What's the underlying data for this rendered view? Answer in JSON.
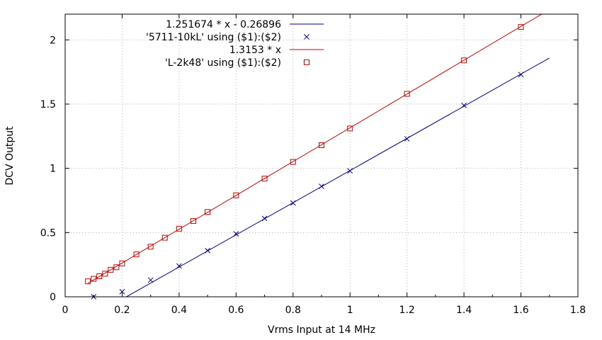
{
  "chart_data": {
    "type": "scatter",
    "title": "",
    "xlabel": "Vrms Input at 14 MHz",
    "ylabel": "DCV Output",
    "xlim": [
      0,
      1.8
    ],
    "ylim": [
      0,
      2.2
    ],
    "x_ticks": [
      "0",
      "0.2",
      "0.4",
      "0.6",
      "0.8",
      "1",
      "1.2",
      "1.4",
      "1.6",
      "1.8"
    ],
    "y_ticks": [
      "0",
      "0.5",
      "1",
      "1.5",
      "2"
    ],
    "grid": true,
    "legend_position": "top-left",
    "series": [
      {
        "name": "1.251674 * x - 0.26896",
        "kind": "line",
        "slope": 1.251674,
        "intercept": -0.26896,
        "x_range": [
          0.215,
          1.7
        ],
        "color": "#00008b"
      },
      {
        "name": "'5711-10kL' using ($1):($2)",
        "kind": "points",
        "marker": "x",
        "color": "#00008b",
        "x": [
          0.1,
          0.2,
          0.3,
          0.4,
          0.5,
          0.6,
          0.7,
          0.8,
          0.9,
          1.0,
          1.2,
          1.4,
          1.6
        ],
        "y": [
          0.0,
          0.04,
          0.13,
          0.24,
          0.36,
          0.49,
          0.61,
          0.73,
          0.86,
          0.98,
          1.23,
          1.49,
          1.73
        ]
      },
      {
        "name": "1.3153 * x",
        "kind": "line",
        "slope": 1.3153,
        "intercept": 0,
        "x_range": [
          0.08,
          1.7
        ],
        "color": "#cc0000"
      },
      {
        "name": "'L-2k48' using ($1):($2)",
        "kind": "points",
        "marker": "square",
        "color": "#cc0000",
        "x": [
          0.08,
          0.1,
          0.12,
          0.14,
          0.16,
          0.18,
          0.2,
          0.25,
          0.3,
          0.35,
          0.4,
          0.45,
          0.5,
          0.6,
          0.7,
          0.8,
          0.9,
          1.0,
          1.2,
          1.4,
          1.6
        ],
        "y": [
          0.12,
          0.14,
          0.16,
          0.18,
          0.21,
          0.23,
          0.26,
          0.33,
          0.39,
          0.46,
          0.53,
          0.59,
          0.66,
          0.79,
          0.92,
          1.05,
          1.18,
          1.31,
          1.58,
          1.84,
          2.1
        ]
      }
    ]
  }
}
